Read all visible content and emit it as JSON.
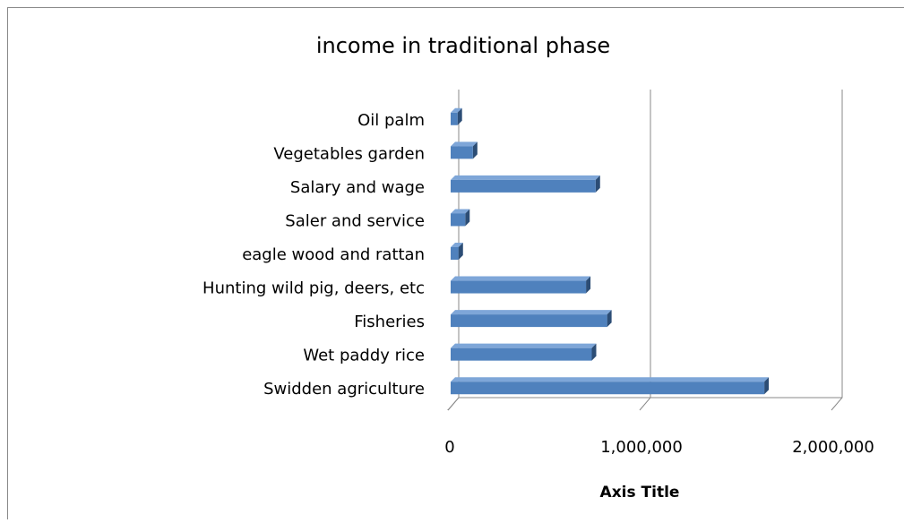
{
  "chart_data": {
    "type": "bar",
    "orientation": "horizontal",
    "title": "income in traditional phase",
    "x_axis_title": "Axis Title",
    "categories": [
      "Swidden agriculture",
      "Wet paddy rice",
      "Fisheries",
      "Hunting wild pig, deers, etc",
      "eagle wood and rattan",
      "Saler and service",
      "Salary and wage",
      "Vegetables garden",
      "Oil palm"
    ],
    "values": [
      1650000,
      750000,
      830000,
      720000,
      55000,
      90000,
      770000,
      130000,
      50000
    ],
    "color": "#4f81bd",
    "xlim": [
      0,
      2000000
    ],
    "xticks": [
      0,
      {
        "value": 1000000,
        "label": "1,000,000"
      },
      {
        "value": 2000000,
        "label": "2,000,000"
      }
    ],
    "grid": true
  }
}
